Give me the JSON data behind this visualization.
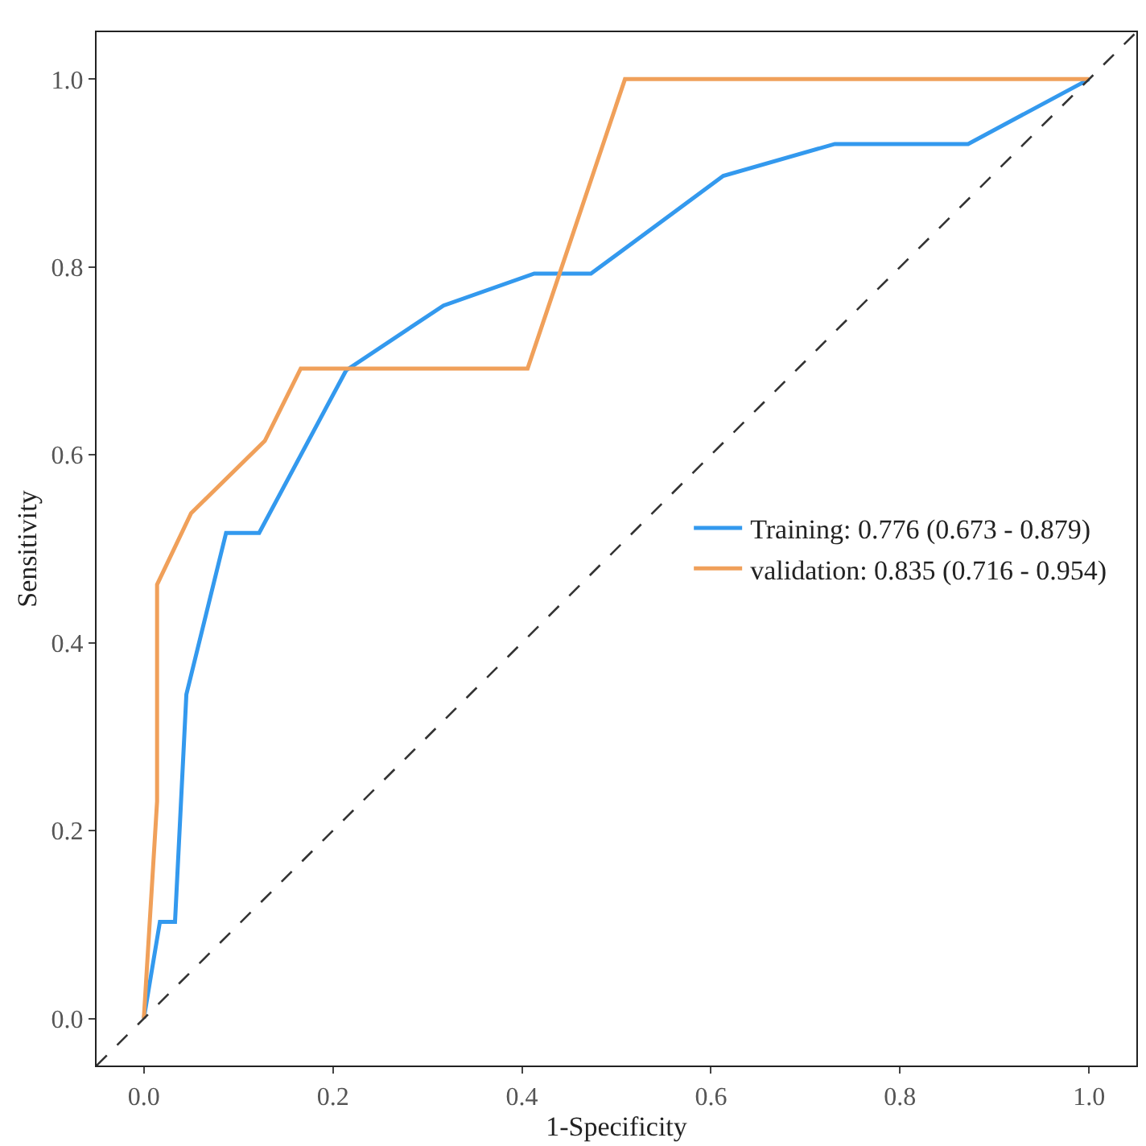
{
  "chart_data": {
    "type": "line",
    "xlabel": "1-Specificity",
    "ylabel": "Sensitivity",
    "xlim": [
      -0.05,
      1.05
    ],
    "ylim": [
      -0.05,
      1.05
    ],
    "xticks": [
      {
        "value": 0,
        "label": "0.0"
      },
      0.2,
      0.4,
      0.6,
      0.8,
      {
        "value": 1,
        "label": "1.0"
      }
    ],
    "yticks": [
      {
        "value": 0,
        "label": "0.0"
      },
      0.2,
      0.4,
      0.6,
      0.8,
      {
        "value": 1,
        "label": "1.0"
      }
    ],
    "grid": false,
    "legend": "right",
    "marker": "none",
    "line_style": "solid",
    "series": [
      {
        "name": "Training: 0.776 (0.673 - 0.879)",
        "color": "#3399ee",
        "x": [
          0,
          0.017,
          0.033,
          0.045,
          0.087,
          0.122,
          0.214,
          0.317,
          0.413,
          0.473,
          0.613,
          0.731,
          0.872,
          1
        ],
        "values": [
          0,
          0.103,
          0.103,
          0.345,
          0.517,
          0.517,
          0.69,
          0.759,
          0.793,
          0.793,
          0.897,
          0.931,
          0.931,
          1
        ]
      },
      {
        "name": "validation: 0.835 (0.716 - 0.954)",
        "color": "#f0a05a",
        "x": [
          0,
          0.014,
          0.014,
          0.05,
          0.128,
          0.166,
          0.406,
          0.509,
          1
        ],
        "values": [
          0,
          0.231,
          0.462,
          0.538,
          0.615,
          0.692,
          0.692,
          1,
          1
        ]
      },
      {
        "color": "#333333",
        "line_style": "dashed",
        "x": [
          -0.05,
          1.05
        ],
        "values": [
          -0.05,
          1.05
        ]
      }
    ]
  }
}
